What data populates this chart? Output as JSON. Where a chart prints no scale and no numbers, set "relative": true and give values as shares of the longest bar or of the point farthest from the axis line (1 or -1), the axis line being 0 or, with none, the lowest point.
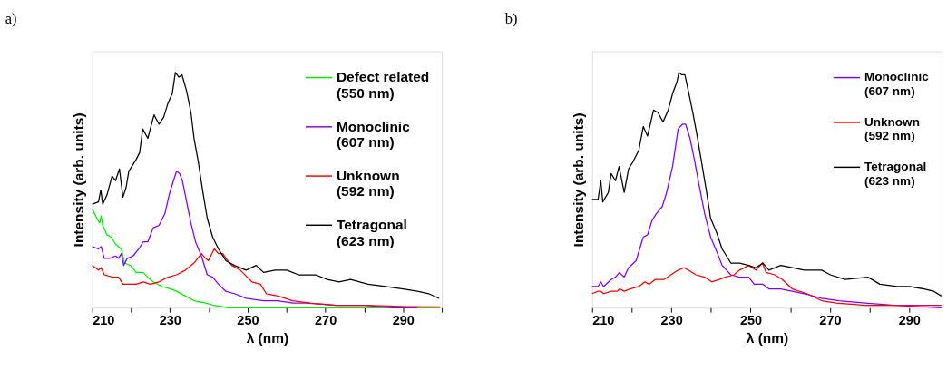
{
  "chart_data": [
    {
      "type": "line",
      "title": "a)",
      "xlabel": "λ (nm)",
      "ylabel": "Intensity (arb. units)",
      "relative": true,
      "xlim": [
        210,
        300
      ],
      "xticks": [
        210,
        {
          "value": 220,
          "label": null
        },
        230,
        {
          "value": 240,
          "label": null
        },
        250,
        {
          "value": 260,
          "label": null
        },
        270,
        {
          "value": 280,
          "label": null
        },
        290,
        {
          "value": 300,
          "label": null
        }
      ],
      "tick_labels": "x",
      "grid": false,
      "legend": "top right",
      "marker": "none",
      "line_style": "solid",
      "series": [
        {
          "name": "Defect related\n(550 nm)",
          "color": "#00ee00",
          "x": [
            210,
            211.2,
            211.9,
            212.3,
            212.7,
            213.8,
            214.9,
            216.0,
            217.5,
            218.3,
            219.8,
            221.3,
            223.1,
            224.3,
            225.7,
            228.0,
            230.2,
            231.7,
            234.0,
            236.2,
            239.2,
            241.4,
            245.1,
            250.4,
            261.6,
            276.5,
            299.6
          ],
          "values": [
            0.42,
            0.38,
            0.36,
            0.39,
            0.35,
            0.31,
            0.3,
            0.27,
            0.25,
            0.19,
            0.18,
            0.15,
            0.15,
            0.13,
            0.11,
            0.09,
            0.08,
            0.07,
            0.05,
            0.03,
            0.02,
            0.01,
            0.0,
            0.0,
            0.0,
            0.0,
            0.0
          ]
        },
        {
          "name": "Monoclinic\n(607 nm)",
          "color": "#8000ff",
          "x": [
            210,
            211.6,
            212.3,
            213.1,
            214.5,
            216.0,
            216.8,
            217.5,
            218.1,
            219.0,
            220.5,
            222.0,
            223.1,
            224.3,
            225.7,
            227.2,
            228.7,
            229.8,
            230.9,
            231.7,
            232.5,
            233.2,
            234.3,
            235.4,
            236.6,
            238.1,
            239.6,
            241.0,
            242.5,
            244.4,
            246.6,
            249.6,
            254.1,
            257.8,
            261.6,
            265.3,
            272.8,
            280.2,
            287.7,
            293.7
          ],
          "values": [
            0.26,
            0.25,
            0.26,
            0.21,
            0.21,
            0.22,
            0.21,
            0.23,
            0.18,
            0.21,
            0.22,
            0.25,
            0.28,
            0.28,
            0.34,
            0.35,
            0.4,
            0.48,
            0.54,
            0.58,
            0.57,
            0.54,
            0.45,
            0.36,
            0.28,
            0.22,
            0.14,
            0.13,
            0.1,
            0.07,
            0.06,
            0.04,
            0.03,
            0.03,
            0.02,
            0.02,
            0.01,
            0.01,
            0.0,
            0.0
          ]
        },
        {
          "name": "Unknown\n(592 nm)",
          "color": "#ff0000",
          "x": [
            210,
            211.6,
            212.3,
            213.1,
            215.3,
            216.8,
            217.9,
            219.4,
            221.3,
            223.1,
            225.0,
            227.2,
            229.5,
            231.7,
            234.0,
            236.2,
            238.1,
            239.2,
            239.9,
            241.4,
            242.5,
            243.6,
            244.4,
            245.9,
            248.1,
            251.1,
            253.3,
            254.8,
            257.8,
            261.6,
            266.0,
            272.8,
            280.2,
            291.4,
            299.6
          ],
          "values": [
            0.18,
            0.16,
            0.17,
            0.14,
            0.13,
            0.13,
            0.1,
            0.1,
            0.1,
            0.11,
            0.1,
            0.11,
            0.13,
            0.14,
            0.16,
            0.19,
            0.23,
            0.21,
            0.2,
            0.25,
            0.23,
            0.23,
            0.21,
            0.18,
            0.16,
            0.11,
            0.1,
            0.06,
            0.05,
            0.03,
            0.02,
            0.01,
            0.01,
            0.005,
            0.004
          ]
        },
        {
          "name": "Tetragonal\n(623 nm)",
          "color": "#000000",
          "x": [
            210.0,
            211.6,
            212.2,
            212.7,
            213.8,
            215.1,
            216.0,
            217.0,
            217.9,
            218.7,
            219.4,
            221.3,
            222.2,
            223.0,
            224.3,
            225.9,
            227.2,
            228.4,
            229.5,
            230.6,
            231.4,
            232.3,
            233.1,
            234.3,
            235.4,
            236.2,
            237.3,
            238.4,
            239.6,
            241.0,
            242.5,
            244.4,
            246.6,
            249.6,
            252.2,
            254.1,
            257.1,
            260.1,
            263.1,
            267.5,
            270.5,
            273.5,
            276.5,
            281.0,
            285.5,
            290.0,
            293.7,
            296.6,
            299.3
          ],
          "values": [
            0.44,
            0.45,
            0.5,
            0.44,
            0.48,
            0.56,
            0.54,
            0.59,
            0.47,
            0.51,
            0.58,
            0.63,
            0.66,
            0.76,
            0.72,
            0.82,
            0.78,
            0.81,
            0.87,
            0.91,
            1.0,
            0.98,
            0.99,
            0.92,
            0.83,
            0.72,
            0.62,
            0.5,
            0.38,
            0.3,
            0.25,
            0.2,
            0.18,
            0.16,
            0.18,
            0.15,
            0.16,
            0.16,
            0.14,
            0.14,
            0.12,
            0.11,
            0.12,
            0.1,
            0.09,
            0.08,
            0.07,
            0.06,
            0.04
          ]
        }
      ]
    },
    {
      "type": "line",
      "title": "b)",
      "xlabel": "λ (nm)",
      "ylabel": "Intensity (arb. units)",
      "relative": true,
      "xlim": [
        210,
        298.2
      ],
      "xticks": [
        210,
        {
          "value": 220,
          "label": null
        },
        230,
        {
          "value": 240,
          "label": null
        },
        250,
        {
          "value": 260,
          "label": null
        },
        270,
        {
          "value": 280,
          "label": null
        },
        290
      ],
      "tick_labels": "x",
      "grid": false,
      "legend": "top right",
      "marker": "none",
      "line_style": "solid",
      "series": [
        {
          "name": "Monoclinic\n(607 nm)",
          "color": "#8000ff",
          "x": [
            210,
            211.5,
            212.2,
            212.9,
            214.8,
            215.9,
            216.9,
            218.1,
            219.2,
            221.1,
            222.9,
            224.0,
            225.1,
            226.2,
            227.7,
            228.8,
            230.3,
            231.7,
            232.8,
            233.6,
            234.7,
            235.8,
            236.9,
            238.4,
            239.9,
            241.4,
            242.8,
            245.0,
            247.2,
            249.5,
            250.9,
            253.1,
            254.6,
            257.6,
            260.5,
            263.5,
            267.9,
            272.3,
            278.9,
            286.3,
            298.1
          ],
          "values": [
            0.09,
            0.09,
            0.11,
            0.09,
            0.12,
            0.13,
            0.15,
            0.13,
            0.17,
            0.2,
            0.3,
            0.31,
            0.37,
            0.4,
            0.43,
            0.49,
            0.6,
            0.76,
            0.78,
            0.78,
            0.72,
            0.63,
            0.53,
            0.4,
            0.3,
            0.24,
            0.18,
            0.14,
            0.13,
            0.13,
            0.1,
            0.1,
            0.08,
            0.08,
            0.07,
            0.06,
            0.04,
            0.03,
            0.02,
            0.01,
            0.0
          ]
        },
        {
          "name": "Unknown\n(592 nm)",
          "color": "#ff0000",
          "x": [
            210,
            211.5,
            212.2,
            212.9,
            214.8,
            216.3,
            217.0,
            218.1,
            219.6,
            221.8,
            223.3,
            224.4,
            225.9,
            228.1,
            229.9,
            231.7,
            233.2,
            234.3,
            236.2,
            238.4,
            240.2,
            242.1,
            243.6,
            245.8,
            247.2,
            249.5,
            251.3,
            253.0,
            253.9,
            256.1,
            258.0,
            260.5,
            264.2,
            267.9,
            271.6,
            279.0,
            298.1
          ],
          "values": [
            0.06,
            0.07,
            0.07,
            0.06,
            0.07,
            0.07,
            0.08,
            0.07,
            0.08,
            0.09,
            0.11,
            0.1,
            0.12,
            0.12,
            0.14,
            0.16,
            0.17,
            0.16,
            0.14,
            0.13,
            0.11,
            0.12,
            0.13,
            0.14,
            0.16,
            0.18,
            0.16,
            0.19,
            0.15,
            0.14,
            0.12,
            0.08,
            0.06,
            0.03,
            0.02,
            0.01,
            0.01
          ]
        },
        {
          "name": "Tetragonal\n(623 nm)",
          "color": "#000000",
          "x": [
            210,
            211.5,
            212.2,
            212.7,
            214.1,
            214.8,
            215.9,
            216.8,
            218.1,
            219.2,
            220.3,
            221.8,
            222.9,
            224.0,
            225.5,
            226.6,
            227.9,
            229.2,
            230.3,
            231.4,
            231.9,
            232.6,
            233.4,
            234.3,
            235.4,
            236.5,
            237.6,
            238.8,
            239.9,
            241.4,
            242.8,
            245.0,
            247.2,
            249.5,
            251.3,
            253.1,
            254.6,
            257.6,
            260.5,
            263.5,
            267.9,
            270.1,
            273.8,
            279.6,
            282.6,
            287.0,
            290.0,
            293.7,
            296.2,
            298.1
          ],
          "values": [
            0.46,
            0.46,
            0.54,
            0.45,
            0.49,
            0.57,
            0.54,
            0.6,
            0.49,
            0.59,
            0.62,
            0.67,
            0.77,
            0.73,
            0.84,
            0.83,
            0.79,
            0.84,
            0.91,
            0.96,
            1.0,
            0.99,
            0.99,
            0.92,
            0.83,
            0.73,
            0.62,
            0.5,
            0.38,
            0.32,
            0.25,
            0.19,
            0.19,
            0.18,
            0.17,
            0.19,
            0.16,
            0.18,
            0.17,
            0.16,
            0.16,
            0.14,
            0.12,
            0.13,
            0.1,
            0.09,
            0.09,
            0.08,
            0.07,
            0.05
          ]
        }
      ]
    }
  ]
}
